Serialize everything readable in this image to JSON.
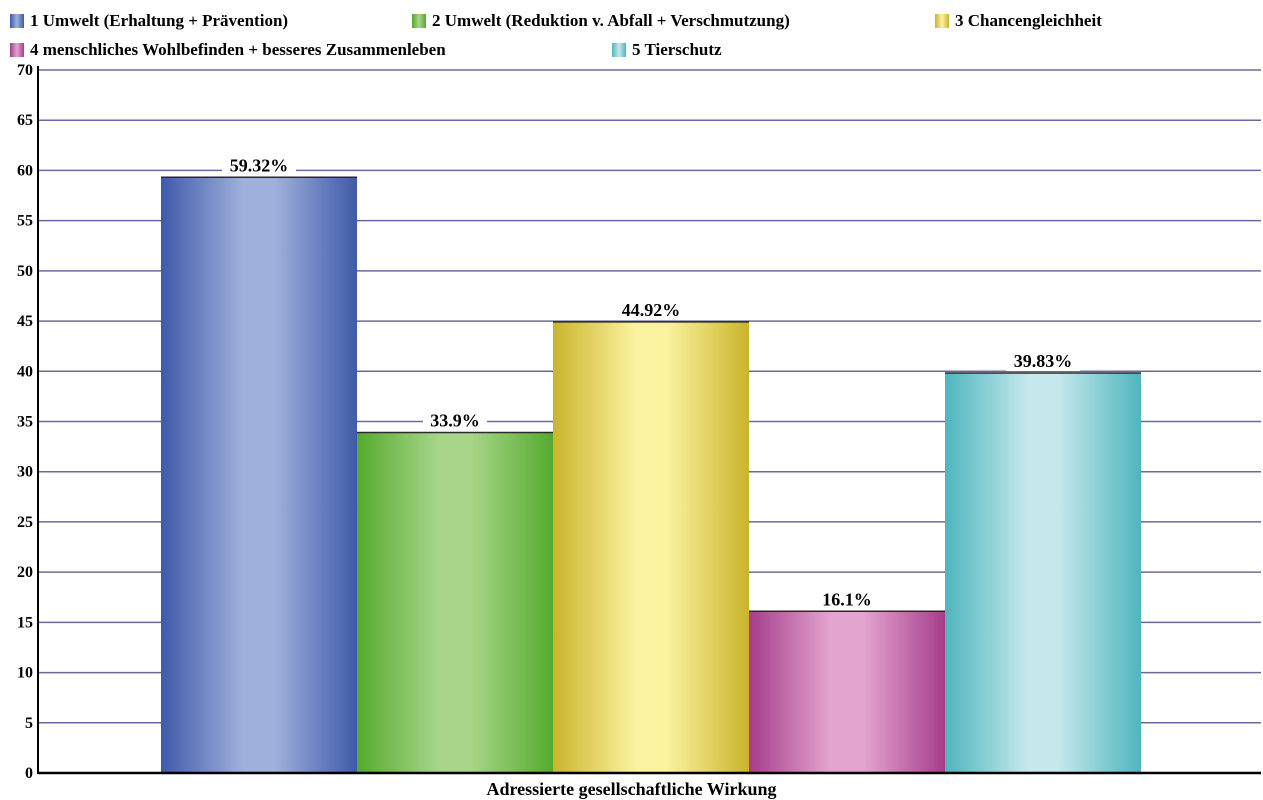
{
  "chart_data": {
    "type": "bar",
    "title": "",
    "xlabel": "Adressierte gesellschaftliche Wirkung",
    "ylabel": "",
    "ylim": [
      0,
      70
    ],
    "yticks": [
      "0",
      "5",
      "10",
      "15",
      "20",
      "25",
      "30",
      "35",
      "40",
      "45",
      "50",
      "55",
      "60",
      "65",
      "70"
    ],
    "grid": true,
    "legend_position": "top",
    "series": [
      {
        "name": "1 Umwelt (Erhaltung + Prävention)",
        "value": 59.32,
        "label": "59.32%",
        "color": "#3f5aa8",
        "highlight": "#9fb0dc"
      },
      {
        "name": "2 Umwelt (Reduktion v. Abfall + Verschmutzung)",
        "value": 33.9,
        "label": "33.9%",
        "color": "#55aa2e",
        "highlight": "#a8d58a"
      },
      {
        "name": "3 Chancengleichheit",
        "value": 44.92,
        "label": "44.92%",
        "color": "#c9b52b",
        "highlight": "#fbf2a0"
      },
      {
        "name": "4 menschliches Wohlbefinden + besseres Zusammenleben",
        "value": 16.1,
        "label": "16.1%",
        "color": "#a63d8c",
        "highlight": "#e3a5cf"
      },
      {
        "name": "5 Tierschutz",
        "value": 39.83,
        "label": "39.83%",
        "color": "#4fb5be",
        "highlight": "#c4e8ec"
      }
    ]
  },
  "colors": {
    "gridline": "#6a6a9c",
    "axis": "#000000"
  }
}
